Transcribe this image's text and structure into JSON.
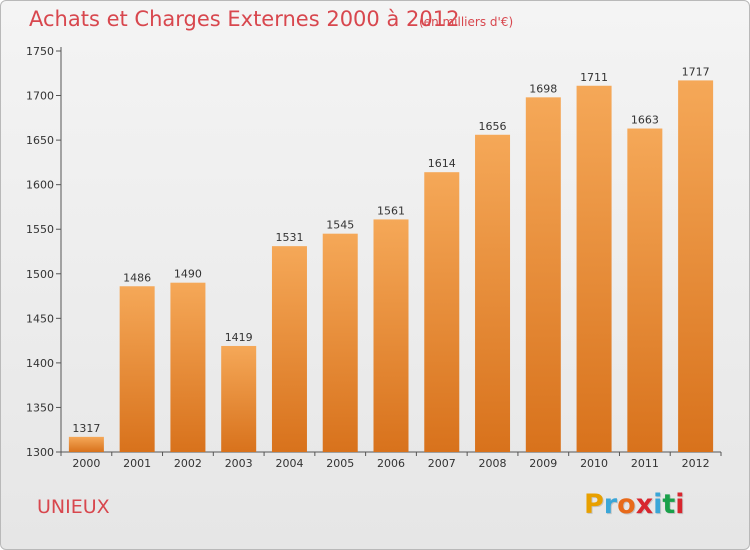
{
  "title": "Achats et Charges Externes 2000 à 2012",
  "subtitle": "(en milliers d'€)",
  "commune": "UNIEUX",
  "logo": {
    "letters": [
      "P",
      "r",
      "o",
      "x",
      "i",
      "t",
      "i"
    ],
    "colors": [
      "#e8a000",
      "#3aa6d8",
      "#e86a1a",
      "#d8262e",
      "#3aa6d8",
      "#1aa04a",
      "#d8262e"
    ]
  },
  "colors": {
    "bar_top": "#f5a858",
    "bar_bottom": "#d8721c",
    "axis": "#555555",
    "grid": "#dddddd",
    "title": "#d8474e"
  },
  "chart_data": {
    "type": "bar",
    "title": "Achats et Charges Externes 2000 à 2012",
    "subtitle": "(en milliers d'€)",
    "categories": [
      "2000",
      "2001",
      "2002",
      "2003",
      "2004",
      "2005",
      "2006",
      "2007",
      "2008",
      "2009",
      "2010",
      "2011",
      "2012"
    ],
    "values": [
      1317,
      1486,
      1490,
      1419,
      1531,
      1545,
      1561,
      1614,
      1656,
      1698,
      1711,
      1663,
      1717
    ],
    "ylim": [
      1300,
      1750
    ],
    "yticks": [
      1300,
      1350,
      1400,
      1450,
      1500,
      1550,
      1600,
      1650,
      1700,
      1750
    ],
    "xlabel": "",
    "ylabel": "",
    "grid": false,
    "legend": "none"
  }
}
